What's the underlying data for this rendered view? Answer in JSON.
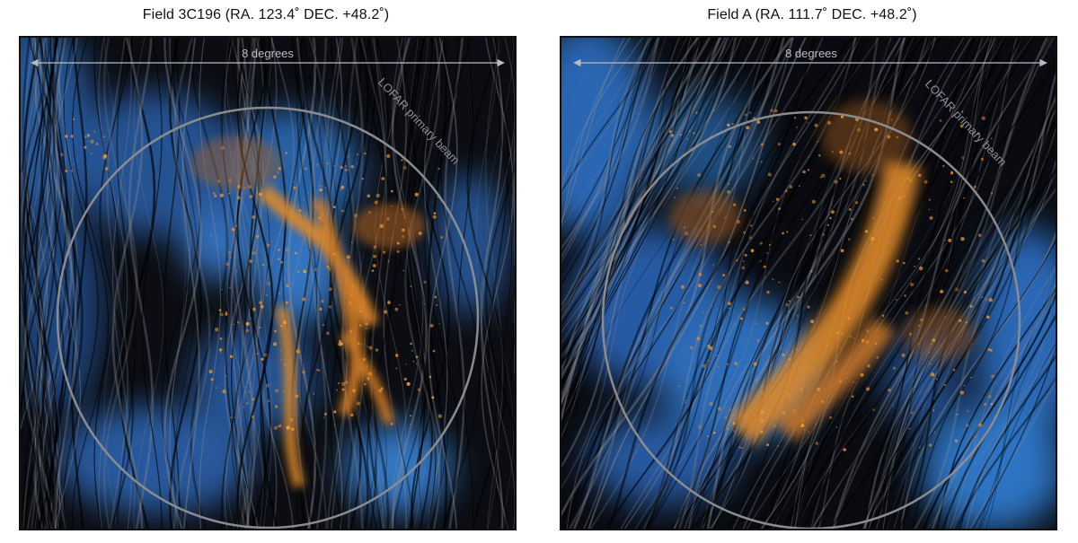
{
  "panels": [
    {
      "title": "Field 3C196 (RA. 123.4˚ DEC. +48.2˚)",
      "span_label": "8 degrees",
      "beam_label": "LOFAR primary beam"
    },
    {
      "title": "Field A (RA. 111.7˚ DEC. +48.2˚)",
      "span_label": "8 degrees",
      "beam_label": "LOFAR primary beam"
    }
  ],
  "colors": {
    "background_dark": "#0a0b0f",
    "streak_gray": "#9a9ea6",
    "dust_blue": "#2f78d0",
    "emission_orange": "#e08a2c",
    "beam_circle": "#8a8c91",
    "arrow": "#b9bcc2"
  }
}
